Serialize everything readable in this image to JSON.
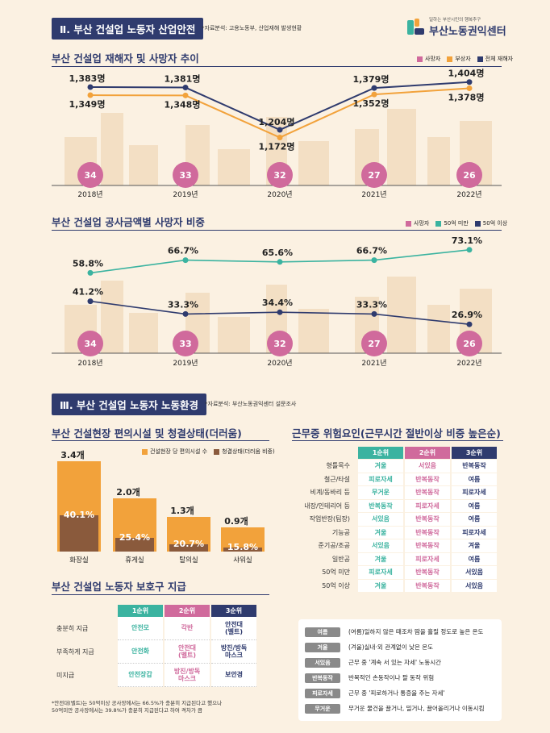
{
  "header": {
    "section2_title": "Ⅱ. 부산 건설업 노동자 산업안전",
    "section2_source": "*자료분석: 고용노동부, 산업재해 발생현황",
    "logo_sub": "일하는 부산시민의 행복추구",
    "logo_name": "부산노동권익센터"
  },
  "chart1": {
    "title": "부산 건설업 재해자 및 사망자 추이",
    "legend": [
      {
        "label": "사망자",
        "color": "#d06a9c"
      },
      {
        "label": "부상자",
        "color": "#f2a23b"
      },
      {
        "label": "전체 재해자",
        "color": "#2f3b6e"
      }
    ]
  },
  "chart2": {
    "title": "부산 건설업 공사금액별 사망자 비중",
    "legend": [
      {
        "label": "사망자",
        "color": "#d06a9c"
      },
      {
        "label": "50억 미만",
        "color": "#3bb3a0"
      },
      {
        "label": "50억 이상",
        "color": "#2f3b6e"
      }
    ]
  },
  "chart_data": [
    {
      "type": "line",
      "title": "부산 건설업 재해자 및 사망자 추이",
      "categories": [
        "2018년",
        "2019년",
        "2020년",
        "2021년",
        "2022년"
      ],
      "series": [
        {
          "name": "전체 재해자",
          "values": [
            1383,
            1381,
            1204,
            1379,
            1404
          ],
          "labels": [
            "1,383명",
            "1,381명",
            "1,204명",
            "1,379명",
            "1,404명"
          ]
        },
        {
          "name": "부상자",
          "values": [
            1349,
            1348,
            1172,
            1352,
            1378
          ],
          "labels": [
            "1,349명",
            "1,348명",
            "1,172명",
            "1,352명",
            "1,378명"
          ]
        },
        {
          "name": "사망자",
          "values": [
            34,
            33,
            32,
            27,
            26
          ],
          "labels": [
            "34",
            "33",
            "32",
            "27",
            "26"
          ]
        }
      ]
    },
    {
      "type": "line",
      "title": "부산 건설업 공사금액별 사망자 비중",
      "categories": [
        "2018년",
        "2019년",
        "2020년",
        "2021년",
        "2022년"
      ],
      "series": [
        {
          "name": "50억 미만",
          "values": [
            58.8,
            66.7,
            65.6,
            66.7,
            73.1
          ],
          "labels": [
            "58.8%",
            "66.7%",
            "65.6%",
            "66.7%",
            "73.1%"
          ]
        },
        {
          "name": "50억 이상",
          "values": [
            41.2,
            33.3,
            34.4,
            33.3,
            26.9
          ],
          "labels": [
            "41.2%",
            "33.3%",
            "34.4%",
            "33.3%",
            "26.9%"
          ]
        },
        {
          "name": "사망자",
          "values": [
            34,
            33,
            32,
            27,
            26
          ],
          "labels": [
            "34",
            "33",
            "32",
            "27",
            "26"
          ]
        }
      ]
    },
    {
      "type": "bar",
      "title": "부산 건설현장 편의시설 및 청결상태(더러움)",
      "categories": [
        "화장실",
        "휴게실",
        "탈의실",
        "샤워실"
      ],
      "series": [
        {
          "name": "건설현장 당 편의시설 수",
          "values": [
            3.4,
            2.0,
            1.3,
            0.9
          ],
          "labels": [
            "3.4개",
            "2.0개",
            "1.3개",
            "0.9개"
          ]
        },
        {
          "name": "청결상태(더러움 비중)",
          "values": [
            40.1,
            25.4,
            20.7,
            15.8
          ],
          "labels": [
            "40.1%",
            "25.4%",
            "20.7%",
            "15.8%"
          ]
        }
      ]
    }
  ],
  "section3": {
    "title": "Ⅲ. 부산 건설업 노동자 노동환경",
    "source": "*자료분석: 부산노동권익센터 설문조사",
    "facility_title": "부산 건설현장 편의시설 및 청결상태(더러움)",
    "facility_legend": [
      {
        "label": "건설현장 당 편의시설 수",
        "color": "#f2a23b"
      },
      {
        "label": "청결상태(더러움 비중)",
        "color": "#8a5a3c"
      }
    ],
    "protect_title": "부산 건설업 노동자 보호구 지급",
    "protect_headers": [
      "1순위",
      "2순위",
      "3순위"
    ],
    "protect_rows": [
      {
        "label": "충분히 지급",
        "c1": "안전모",
        "c2": "각반",
        "c3": "안전대\n(벨트)"
      },
      {
        "label": "부족하게 지급",
        "c1": "안전화",
        "c2": "안전대\n(벨트)",
        "c3": "방진/방독\n마스크"
      },
      {
        "label": "미지급",
        "c1": "안전장갑",
        "c2": "방진/방독\n마스크",
        "c3": "보안경"
      }
    ],
    "footnote_1": "*안전대(벨트)는 50억이상 공사장에서는 66.5%가 충분히 지급된다고 했으나",
    "footnote_2": "50억미만 공사장에서는 39.8%가 충분히 지급된다고 하여 격차가 큼",
    "risk_title": "근무중 위험요인(근무시간 절반이상 비중 높은순)",
    "risk_headers": [
      "1순위",
      "2순위",
      "3순위"
    ],
    "risk_rows": [
      {
        "label": "형틀목수",
        "c1": "겨울",
        "c2": "서있음",
        "c3": "반복동작"
      },
      {
        "label": "철근/타설",
        "c1": "피로자세",
        "c2": "반복동작",
        "c3": "여름"
      },
      {
        "label": "비계/동바리 등",
        "c1": "무거운",
        "c2": "반복동작",
        "c3": "피로자세"
      },
      {
        "label": "내장/인테리어 등",
        "c1": "반복동작",
        "c2": "피로자세",
        "c3": "여름"
      },
      {
        "label": "작업반장(팀장)",
        "c1": "서있음",
        "c2": "반복동작",
        "c3": "여름"
      },
      {
        "label": "기능공",
        "c1": "겨울",
        "c2": "반복동작",
        "c3": "피로자세"
      },
      {
        "label": "준기공/조공",
        "c1": "서있음",
        "c2": "반복동작",
        "c3": "겨울"
      },
      {
        "label": "일반공",
        "c1": "겨울",
        "c2": "피로자세",
        "c3": "여름"
      },
      {
        "label": "50억 미만",
        "c1": "피로자세",
        "c2": "반복동작",
        "c3": "서있음"
      },
      {
        "label": "50억 이상",
        "c1": "겨울",
        "c2": "반복동작",
        "c3": "서있음"
      }
    ],
    "glossary": [
      {
        "tag": "여름",
        "desc": "(여름)일하지 않은 때조차 땀을 흘릴 정도로 높은 온도"
      },
      {
        "tag": "겨울",
        "desc": "(겨울)실내·외 관계없이 낮은 온도"
      },
      {
        "tag": "서있음",
        "desc": "근무 중 '계속 서 있는 자세' 노동시간"
      },
      {
        "tag": "반복동작",
        "desc": "반복적인 손동작이나 팔 동작 위험"
      },
      {
        "tag": "피로자세",
        "desc": "근무 중 '피로하거나 통증을 주는 자세'"
      },
      {
        "tag": "무거운",
        "desc": "무거운 물건을 끌거나, 밀거나, 끌어올리거나 이동시킴"
      }
    ]
  },
  "colors": {
    "navy": "#2f3b6e",
    "orange": "#f2a23b",
    "pink": "#d06a9c",
    "teal": "#3bb3a0",
    "brown": "#8a5a3c",
    "background": "#fbf1e2"
  }
}
